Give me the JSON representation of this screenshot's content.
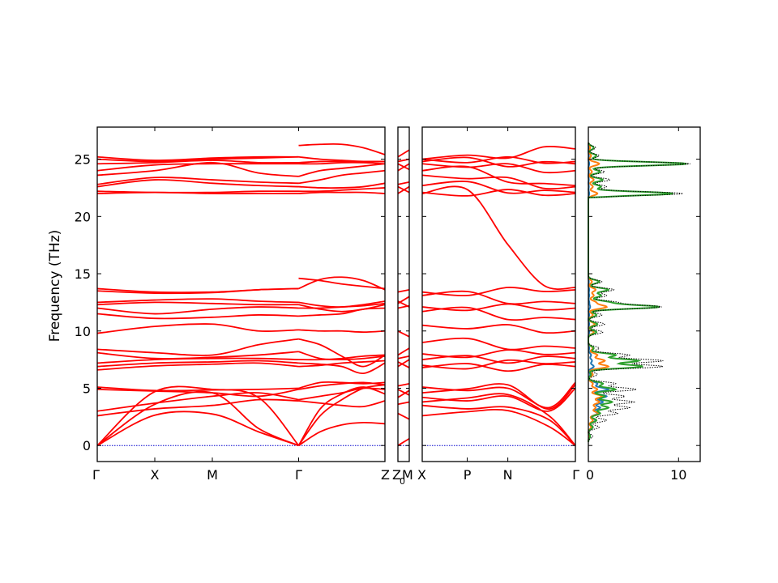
{
  "chart_data": {
    "type": "line",
    "ylabel": "Frequency (THz)",
    "ylim": [
      -1.4,
      27.8
    ],
    "yticks": [
      0,
      5,
      10,
      15,
      20,
      25
    ],
    "colors": {
      "bands": "#ff0000",
      "zero_line": "#0000cc",
      "dos_total": "#000000",
      "dos_1": "#1f77b4",
      "dos_2": "#ff7f0e",
      "dos_3": "#2ca02c"
    },
    "panels": [
      {
        "kind": "bands",
        "q_points": [
          "Γ",
          "X",
          "M",
          "Γ",
          "Z"
        ],
        "q_positions": [
          0,
          1,
          2,
          3.5,
          5
        ],
        "segments": [
          [
            0,
            3.5
          ],
          [
            3.5,
            5
          ]
        ],
        "branches": [
          {
            "endpoints": [
              0,
              2.7,
              2.7,
              0
            ],
            "values": [
              0,
              2.65,
              2.75,
              1.2,
              0
            ]
          },
          {
            "endpoints": [
              0,
              3.9,
              4.4,
              0
            ],
            "values": [
              0,
              3.6,
              4.6,
              1.5,
              0
            ]
          },
          {
            "endpoints": [
              0,
              4.8,
              4.8,
              0
            ],
            "values": [
              0,
              4.7,
              4.9,
              4.2,
              0
            ]
          },
          {
            "endpoints": [
              2.6,
              2.7,
              4.3,
              3.9
            ],
            "values": [
              2.6,
              3.2,
              3.5,
              4.0,
              3.9
            ]
          },
          {
            "endpoints": [
              3.0,
              3.9,
              4.4,
              4.0
            ],
            "values": [
              3.0,
              3.7,
              4.3,
              4.6,
              4.0
            ]
          },
          {
            "endpoints": [
              4.9,
              4.7,
              4.8,
              4.9
            ],
            "values": [
              4.9,
              4.75,
              4.6,
              4.3,
              4.9
            ]
          },
          {
            "endpoints": [
              5.1,
              4.8,
              4.9,
              5.0
            ],
            "values": [
              5.1,
              4.8,
              4.85,
              4.9,
              5.0
            ]
          },
          {
            "endpoints": [
              6.6,
              7.0,
              7.3,
              6.9
            ],
            "values": [
              6.6,
              6.95,
              7.1,
              7.2,
              6.9
            ]
          },
          {
            "endpoints": [
              6.9,
              7.1,
              7.6,
              7.2
            ],
            "values": [
              6.9,
              7.2,
              7.3,
              7.4,
              7.2
            ]
          },
          {
            "endpoints": [
              7.2,
              7.4,
              7.7,
              7.5
            ],
            "values": [
              7.2,
              7.5,
              7.6,
              7.6,
              7.5
            ]
          },
          {
            "endpoints": [
              8.1,
              7.6,
              7.8,
              8.2
            ],
            "values": [
              8.1,
              7.6,
              7.7,
              7.9,
              8.2
            ]
          },
          {
            "endpoints": [
              8.4,
              8.1,
              7.9,
              9.3
            ],
            "values": [
              8.4,
              8.1,
              7.9,
              8.8,
              9.3
            ]
          },
          {
            "endpoints": [
              9.8,
              10.6,
              10.0,
              10.1
            ],
            "values": [
              9.8,
              10.4,
              10.6,
              10.0,
              10.1
            ]
          },
          {
            "endpoints": [
              11.5,
              11.0,
              11.2,
              11.3
            ],
            "values": [
              11.5,
              11.1,
              11.2,
              11.4,
              11.3
            ]
          },
          {
            "endpoints": [
              12.0,
              11.4,
              12.0,
              12.0
            ],
            "values": [
              12.0,
              11.5,
              11.9,
              12.1,
              12.0
            ]
          },
          {
            "endpoints": [
              12.3,
              12.4,
              12.3,
              12.3
            ],
            "values": [
              12.3,
              12.5,
              12.4,
              12.3,
              12.3
            ]
          },
          {
            "endpoints": [
              12.5,
              12.8,
              12.6,
              12.5
            ],
            "values": [
              12.5,
              12.7,
              12.8,
              12.6,
              12.5
            ]
          },
          {
            "endpoints": [
              13.5,
              13.3,
              13.3,
              13.7
            ],
            "values": [
              13.5,
              13.3,
              13.35,
              13.6,
              13.7
            ]
          },
          {
            "endpoints": [
              13.7,
              13.4,
              13.4,
              13.7
            ],
            "values": [
              13.7,
              13.4,
              13.4,
              13.6,
              13.7
            ]
          },
          {
            "endpoints": [
              22.0,
              22.0,
              22.0,
              22.0
            ],
            "values": [
              22.0,
              22.1,
              22.0,
              22.0,
              22.0
            ]
          },
          {
            "endpoints": [
              22.2,
              22.1,
              22.1,
              22.2
            ],
            "values": [
              22.2,
              22.1,
              22.1,
              22.2,
              22.2
            ]
          },
          {
            "endpoints": [
              22.6,
              22.9,
              22.9,
              22.6
            ],
            "values": [
              22.6,
              23.2,
              22.9,
              22.7,
              22.6
            ]
          },
          {
            "endpoints": [
              22.8,
              23.6,
              23.2,
              22.9
            ],
            "values": [
              22.8,
              23.4,
              23.2,
              23.0,
              22.9
            ]
          },
          {
            "endpoints": [
              23.6,
              24.0,
              24.7,
              23.5
            ],
            "values": [
              23.6,
              24.0,
              24.7,
              23.8,
              23.5
            ]
          },
          {
            "endpoints": [
              24.0,
              24.1,
              24.6,
              24.6
            ],
            "values": [
              24.0,
              24.5,
              24.6,
              24.6,
              24.6
            ]
          },
          {
            "endpoints": [
              24.6,
              24.7,
              24.9,
              24.7
            ],
            "values": [
              24.6,
              24.7,
              24.9,
              24.7,
              24.7
            ]
          },
          {
            "endpoints": [
              25.0,
              24.8,
              25.0,
              25.2
            ],
            "values": [
              25.0,
              24.8,
              25.0,
              25.1,
              25.2
            ]
          },
          {
            "endpoints": [
              25.2,
              24.9,
              25.1,
              25.2
            ],
            "values": [
              25.2,
              24.9,
              25.1,
              25.2,
              25.2
            ]
          }
        ],
        "second_segment_branches": [
          {
            "values": [
              0,
              2.6,
              4.0,
              5.0,
              5.3
            ]
          },
          {
            "values": [
              0,
              1.2,
              1.8,
              2.0,
              1.9
            ]
          },
          {
            "values": [
              0,
              3.2,
              4.5,
              5.1,
              4.5
            ]
          },
          {
            "values": [
              3.9,
              3.7,
              3.5,
              3.4,
              3.9
            ]
          },
          {
            "values": [
              4.0,
              4.3,
              4.6,
              5.0,
              4.9
            ]
          },
          {
            "values": [
              4.9,
              5.2,
              5.4,
              5.5,
              5.3
            ]
          },
          {
            "values": [
              5.0,
              5.5,
              5.5,
              5.4,
              5.5
            ]
          },
          {
            "values": [
              6.9,
              7.0,
              7.2,
              7.3,
              7.4
            ]
          },
          {
            "values": [
              7.2,
              7.1,
              6.9,
              6.3,
              7.2
            ]
          },
          {
            "values": [
              7.5,
              7.5,
              7.6,
              7.8,
              7.9
            ]
          },
          {
            "values": [
              8.2,
              7.6,
              7.5,
              7.6,
              7.8
            ]
          },
          {
            "values": [
              9.3,
              8.8,
              7.8,
              6.9,
              7.9
            ]
          },
          {
            "values": [
              10.1,
              10.0,
              10.0,
              9.9,
              10.0
            ]
          },
          {
            "values": [
              11.3,
              11.4,
              11.5,
              11.9,
              12.0
            ]
          },
          {
            "values": [
              12.0,
              12.0,
              12.1,
              12.2,
              12.4
            ]
          },
          {
            "values": [
              12.3,
              11.9,
              11.7,
              11.9,
              12.3
            ]
          },
          {
            "values": [
              12.5,
              12.2,
              12.1,
              12.3,
              12.6
            ]
          },
          {
            "values": [
              13.7,
              14.5,
              14.7,
              14.4,
              13.6
            ]
          },
          {
            "values": [
              14.6,
              14.4,
              14.1,
              13.9,
              13.7
            ]
          },
          {
            "values": [
              22.0,
              22.1,
              22.1,
              22.1,
              22.0
            ]
          },
          {
            "values": [
              22.2,
              22.2,
              22.3,
              22.4,
              22.5
            ]
          },
          {
            "values": [
              22.6,
              22.5,
              22.5,
              22.6,
              22.9
            ]
          },
          {
            "values": [
              22.9,
              23.2,
              23.6,
              23.8,
              24.0
            ]
          },
          {
            "values": [
              23.5,
              24.0,
              24.2,
              24.4,
              24.6
            ]
          },
          {
            "values": [
              24.6,
              24.6,
              24.7,
              24.7,
              24.6
            ]
          },
          {
            "values": [
              24.7,
              24.8,
              24.8,
              24.8,
              24.8
            ]
          },
          {
            "values": [
              25.2,
              25.0,
              24.9,
              24.8,
              24.8
            ]
          },
          {
            "values": [
              26.2,
              26.3,
              26.3,
              26.0,
              25.4
            ]
          }
        ]
      },
      {
        "kind": "bands-narrow",
        "q_points": [
          "Z",
          "Z",
          "M"
        ],
        "label_left": "Z",
        "label_mid": "Z",
        "label_sub": "0",
        "label_right": "M",
        "levels": [
          0,
          2.8,
          3.6,
          4.2,
          4.9,
          5.2,
          6.9,
          7.3,
          7.6,
          7.9,
          10.0,
          12.0,
          12.4,
          12.6,
          13.4,
          22.0,
          22.6,
          22.8,
          24.0,
          24.6,
          24.8,
          25.2
        ]
      },
      {
        "kind": "bands",
        "q_points": [
          "X",
          "P",
          "N",
          "Γ"
        ],
        "q_positions": [
          0,
          1,
          1.9,
          3.4
        ],
        "levels_left": [
          0,
          2.6,
          3.5,
          3.8,
          4.2,
          4.6,
          5.1,
          6.8,
          7.0,
          7.5,
          8.0,
          9.0,
          10.5,
          11.7,
          12.1,
          13.1,
          13.4,
          22.0,
          22.1,
          22.7,
          23.6,
          24.0,
          24.6,
          24.8,
          25.0
        ],
        "levels_right": [
          0,
          2.8,
          3.8,
          4.4,
          5.0,
          5.3,
          5.5,
          6.9,
          7.3,
          7.6,
          8.1,
          8.5,
          10.0,
          11.0,
          12.0,
          12.4,
          13.6,
          13.8,
          22.0,
          22.1,
          22.6,
          22.7,
          24.0,
          24.6,
          24.8,
          25.9
        ]
      },
      {
        "kind": "dos",
        "xlim": [
          0,
          12.4
        ],
        "xticks": [
          0,
          10
        ],
        "peaks": [
          {
            "f": 0.8,
            "total": 0.5,
            "p1": 0.2,
            "p2": 0.1,
            "p3": 0.2
          },
          {
            "f": 1.6,
            "total": 1.2,
            "p1": 0.5,
            "p2": 0.3,
            "p3": 0.5
          },
          {
            "f": 2.2,
            "total": 2.0,
            "p1": 0.8,
            "p2": 0.5,
            "p3": 0.9
          },
          {
            "f": 2.8,
            "total": 3.2,
            "p1": 1.0,
            "p2": 1.1,
            "p3": 1.3
          },
          {
            "f": 3.3,
            "total": 4.5,
            "p1": 1.3,
            "p2": 0.8,
            "p3": 2.2
          },
          {
            "f": 3.8,
            "total": 5.0,
            "p1": 1.6,
            "p2": 1.2,
            "p3": 2.6
          },
          {
            "f": 4.3,
            "total": 4.0,
            "p1": 2.0,
            "p2": 1.5,
            "p3": 1.8
          },
          {
            "f": 4.9,
            "total": 5.3,
            "p1": 2.2,
            "p2": 1.0,
            "p3": 3.0
          },
          {
            "f": 5.4,
            "total": 3.0,
            "p1": 1.0,
            "p2": 0.5,
            "p3": 1.6
          },
          {
            "f": 6.2,
            "total": 1.0,
            "p1": 0.2,
            "p2": 0.5,
            "p3": 0.3
          },
          {
            "f": 6.9,
            "total": 8.2,
            "p1": 0.6,
            "p2": 2.2,
            "p3": 6.0
          },
          {
            "f": 7.4,
            "total": 8.2,
            "p1": 0.4,
            "p2": 1.8,
            "p3": 5.5
          },
          {
            "f": 7.9,
            "total": 4.5,
            "p1": 0.3,
            "p2": 1.0,
            "p3": 3.0
          },
          {
            "f": 8.5,
            "total": 1.2,
            "p1": 0.1,
            "p2": 0.5,
            "p3": 0.6
          },
          {
            "f": 9.9,
            "total": 1.6,
            "p1": 0.1,
            "p2": 0.6,
            "p3": 0.9
          },
          {
            "f": 10.6,
            "total": 1.8,
            "p1": 0.1,
            "p2": 0.7,
            "p3": 1.0
          },
          {
            "f": 11.4,
            "total": 1.5,
            "p1": 0.1,
            "p2": 0.5,
            "p3": 0.9
          },
          {
            "f": 12.1,
            "total": 8.0,
            "p1": 0.2,
            "p2": 2.0,
            "p3": 7.8
          },
          {
            "f": 12.5,
            "total": 3.0,
            "p1": 0.1,
            "p2": 0.8,
            "p3": 2.2
          },
          {
            "f": 13.1,
            "total": 2.0,
            "p1": 0.1,
            "p2": 0.6,
            "p3": 1.4
          },
          {
            "f": 13.6,
            "total": 2.8,
            "p1": 0.1,
            "p2": 0.8,
            "p3": 2.2
          },
          {
            "f": 14.3,
            "total": 1.5,
            "p1": 0.05,
            "p2": 0.4,
            "p3": 1.2
          },
          {
            "f": 22.0,
            "total": 10.5,
            "p1": 0.1,
            "p2": 1.0,
            "p3": 9.4
          },
          {
            "f": 22.6,
            "total": 2.0,
            "p1": 0.05,
            "p2": 0.5,
            "p3": 1.4
          },
          {
            "f": 23.2,
            "total": 2.4,
            "p1": 0.05,
            "p2": 0.6,
            "p3": 1.6
          },
          {
            "f": 23.9,
            "total": 1.8,
            "p1": 0.05,
            "p2": 0.4,
            "p3": 1.3
          },
          {
            "f": 24.6,
            "total": 11.3,
            "p1": 0.1,
            "p2": 1.2,
            "p3": 10.9
          },
          {
            "f": 25.3,
            "total": 1.2,
            "p1": 0.05,
            "p2": 0.3,
            "p3": 0.9
          },
          {
            "f": 26.0,
            "total": 0.8,
            "p1": 0.02,
            "p2": 0.2,
            "p3": 0.6
          }
        ]
      }
    ]
  }
}
